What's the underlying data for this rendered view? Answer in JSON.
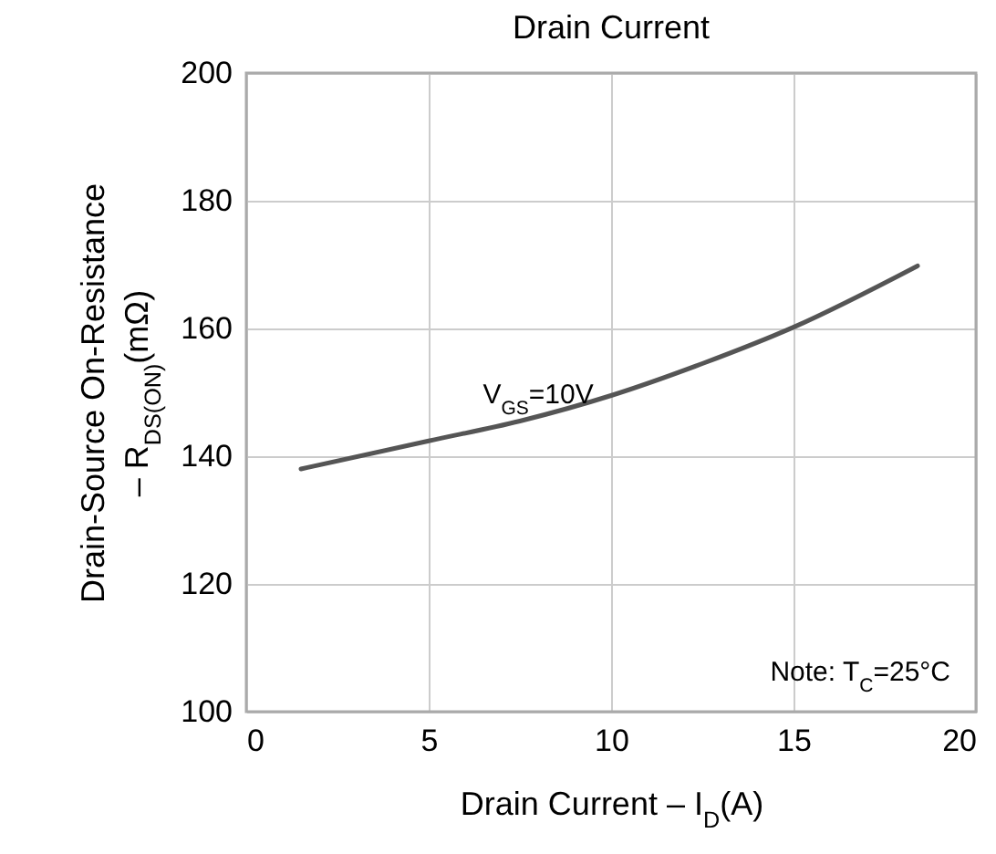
{
  "chart_data": {
    "type": "line",
    "title": "Drain Current",
    "xlabel": "Drain Current  –  I$_{D}$(A)",
    "ylabel": "Drain-Source On-Resistance\n– R$_{DS(ON)}$(mΩ)",
    "x": [
      1.5,
      5,
      7.5,
      10,
      12.5,
      15,
      18.4
    ],
    "series": [
      {
        "color": "#555555",
        "values": [
          138,
          142.4,
          145.5,
          149.5,
          154.5,
          160.2,
          169.8
        ]
      }
    ],
    "xlim": [
      0,
      20
    ],
    "xticks": [
      0,
      5,
      10,
      15,
      20
    ],
    "ylim": [
      100,
      200
    ],
    "yticks": [
      100,
      120,
      140,
      160,
      180,
      200
    ],
    "grid": true,
    "annotations": [
      {
        "text": "V$_{GS}$=10V",
        "x": 8,
        "y": 146
      },
      "Note: T$_{C}$=25°C"
    ]
  }
}
